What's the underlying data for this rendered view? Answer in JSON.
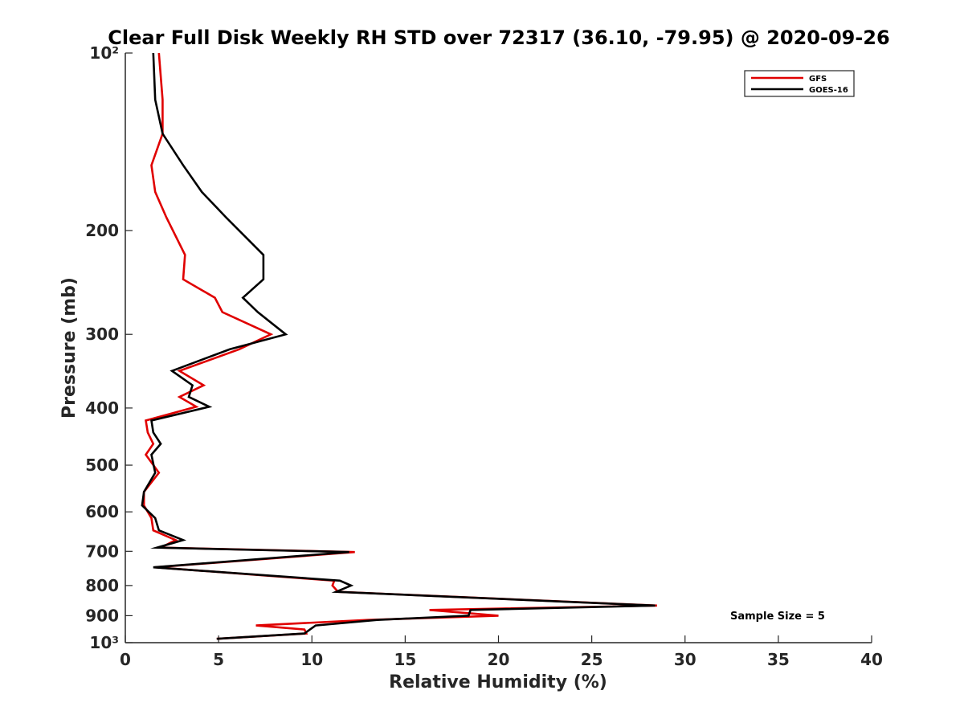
{
  "chart_data": {
    "type": "line",
    "title": "Clear Full Disk Weekly RH STD over 72317 (36.10, -79.95) @ 2020-09-26",
    "xlabel": "Relative Humidity (%)",
    "ylabel": "Pressure (mb)",
    "xlim": [
      0,
      40
    ],
    "ylim": [
      100,
      1000
    ],
    "y_scale": "log",
    "y_reversed": true,
    "x_ticks": [
      0,
      5,
      10,
      15,
      20,
      25,
      30,
      35,
      40
    ],
    "x_tick_labels": [
      "0",
      "5",
      "10",
      "15",
      "20",
      "25",
      "30",
      "35",
      "40"
    ],
    "y_ticks": [
      100,
      200,
      300,
      400,
      500,
      600,
      700,
      800,
      900,
      1000
    ],
    "y_tick_labels": [
      "10²",
      "200",
      "300",
      "400",
      "500",
      "600",
      "700",
      "800",
      "900",
      "10³"
    ],
    "grid": false,
    "legend_position": "top-right",
    "annotation": "Sample Size = 5",
    "series": [
      {
        "name": "GFS",
        "color": "#e00000",
        "x": [
          1.8,
          2.0,
          2.0,
          1.4,
          1.6,
          2.2,
          3.2,
          3.1,
          4.8,
          5.2,
          7.8,
          6.1,
          2.9,
          4.2,
          2.9,
          3.8,
          1.1,
          1.2,
          1.5,
          1.1,
          1.8,
          1.0,
          1.0,
          1.4,
          1.5,
          2.7,
          1.9,
          12.3,
          1.6,
          11.2,
          11.1,
          11.4,
          28.5,
          16.3,
          20.0,
          13.0,
          7.0,
          9.6,
          9.7,
          4.9
        ],
        "y": [
          100,
          120,
          137,
          155,
          172,
          190,
          220,
          242,
          260,
          275,
          300,
          318,
          346,
          366,
          383,
          398,
          420,
          440,
          460,
          480,
          515,
          555,
          585,
          615,
          645,
          670,
          690,
          702,
          745,
          785,
          800,
          820,
          865,
          880,
          900,
          915,
          935,
          950,
          965,
          985
        ]
      },
      {
        "name": "GOES-16",
        "color": "#000000",
        "x": [
          1.5,
          1.6,
          2.0,
          3.1,
          4.1,
          5.4,
          7.4,
          7.4,
          6.3,
          7.1,
          8.6,
          5.6,
          2.5,
          3.6,
          3.4,
          4.5,
          1.4,
          1.5,
          1.9,
          1.4,
          1.6,
          1.0,
          0.9,
          1.6,
          1.8,
          3.1,
          1.7,
          12.0,
          1.5,
          11.5,
          12.1,
          11.3,
          28.4,
          18.5,
          18.4,
          13.5,
          10.2,
          9.9,
          9.6,
          4.9
        ],
        "y": [
          100,
          120,
          137,
          155,
          172,
          190,
          220,
          242,
          260,
          275,
          300,
          318,
          346,
          366,
          383,
          398,
          420,
          440,
          460,
          480,
          515,
          555,
          585,
          615,
          645,
          670,
          690,
          702,
          745,
          785,
          800,
          820,
          865,
          880,
          900,
          915,
          935,
          950,
          965,
          985
        ]
      }
    ]
  }
}
